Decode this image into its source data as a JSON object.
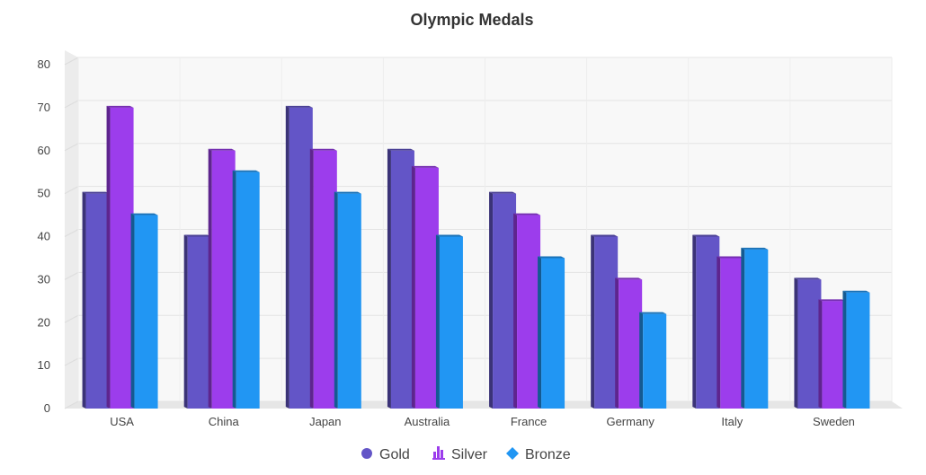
{
  "chart_data": {
    "type": "bar",
    "title": "Olympic Medals",
    "xlabel": "",
    "ylabel": "",
    "categories": [
      "USA",
      "China",
      "Japan",
      "Australia",
      "France",
      "Germany",
      "Italy",
      "Sweden"
    ],
    "series": [
      {
        "name": "Gold",
        "values": [
          50,
          40,
          70,
          60,
          50,
          40,
          40,
          30
        ],
        "color": "#6355C7",
        "legend_icon": "circle-icon"
      },
      {
        "name": "Silver",
        "values": [
          70,
          60,
          60,
          56,
          45,
          30,
          35,
          25
        ],
        "color": "#9C3DEC",
        "legend_icon": "column-chart-icon"
      },
      {
        "name": "Bronze",
        "values": [
          45,
          55,
          50,
          40,
          35,
          22,
          37,
          27
        ],
        "color": "#2196F3",
        "legend_icon": "diamond-icon"
      }
    ],
    "ylim": [
      0,
      80
    ],
    "yticks": [
      0,
      10,
      20,
      30,
      40,
      50,
      60,
      70,
      80
    ],
    "grid": true,
    "style": "3d-column",
    "legend_position": "bottom-center"
  }
}
